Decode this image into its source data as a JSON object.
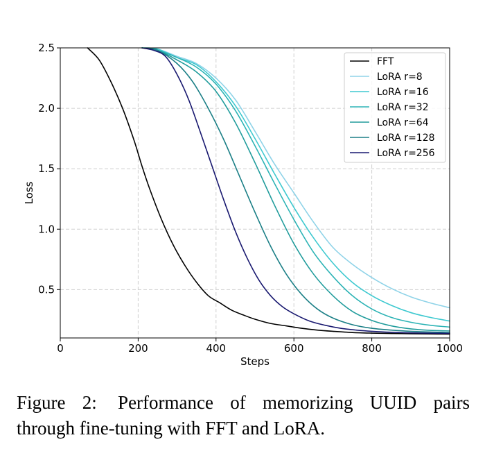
{
  "chart_data": {
    "type": "line",
    "xlabel": "Steps",
    "ylabel": "Loss",
    "xlim": [
      0,
      1000
    ],
    "ylim": [
      0.1,
      2.5
    ],
    "xticks": [
      0,
      200,
      400,
      600,
      800,
      1000
    ],
    "xtick_labels": [
      "0",
      "200",
      "400",
      "600",
      "800",
      "1000"
    ],
    "yticks": [
      0.5,
      1.0,
      1.5,
      2.0,
      2.5
    ],
    "ytick_labels": [
      "0.5",
      "1.0",
      "1.5",
      "2.0",
      "2.5"
    ],
    "grid": true,
    "legend_position": "top-right",
    "series": [
      {
        "name": "FFT",
        "color": "#000000",
        "x": [
          70,
          100,
          130,
          160,
          190,
          210,
          230,
          260,
          290,
          320,
          350,
          380,
          410,
          440,
          470,
          500,
          540,
          580,
          620,
          660,
          700,
          750,
          800,
          850,
          900,
          950,
          1000
        ],
        "y": [
          2.5,
          2.4,
          2.22,
          2.0,
          1.73,
          1.52,
          1.33,
          1.08,
          0.87,
          0.7,
          0.56,
          0.45,
          0.39,
          0.33,
          0.29,
          0.255,
          0.22,
          0.2,
          0.18,
          0.165,
          0.155,
          0.145,
          0.14,
          0.137,
          0.135,
          0.133,
          0.132
        ]
      },
      {
        "name": "LoRA r=8",
        "color": "#8fd3e8",
        "x": [
          210,
          250,
          300,
          350,
          400,
          450,
          500,
          550,
          600,
          650,
          700,
          750,
          800,
          850,
          900,
          950,
          1000
        ],
        "y": [
          2.5,
          2.49,
          2.43,
          2.37,
          2.25,
          2.07,
          1.81,
          1.54,
          1.3,
          1.06,
          0.85,
          0.71,
          0.6,
          0.51,
          0.44,
          0.39,
          0.35
        ]
      },
      {
        "name": "LoRA r=16",
        "color": "#3ec9d0",
        "x": [
          210,
          250,
          300,
          350,
          400,
          450,
          500,
          550,
          600,
          650,
          700,
          750,
          800,
          850,
          900,
          950,
          1000
        ],
        "y": [
          2.5,
          2.49,
          2.42,
          2.36,
          2.22,
          2.02,
          1.75,
          1.46,
          1.18,
          0.93,
          0.72,
          0.56,
          0.45,
          0.37,
          0.31,
          0.27,
          0.24
        ]
      },
      {
        "name": "LoRA r=32",
        "color": "#2cb3b5",
        "x": [
          210,
          250,
          300,
          350,
          400,
          450,
          500,
          550,
          600,
          650,
          700,
          750,
          800,
          850,
          900,
          950,
          1000
        ],
        "y": [
          2.5,
          2.48,
          2.42,
          2.34,
          2.2,
          1.98,
          1.69,
          1.38,
          1.08,
          0.81,
          0.61,
          0.45,
          0.34,
          0.27,
          0.23,
          0.205,
          0.19
        ]
      },
      {
        "name": "LoRA r=64",
        "color": "#219c9c",
        "x": [
          210,
          250,
          300,
          350,
          400,
          450,
          500,
          550,
          600,
          650,
          700,
          750,
          800,
          850,
          900,
          950,
          1000
        ],
        "y": [
          2.5,
          2.48,
          2.4,
          2.3,
          2.14,
          1.88,
          1.55,
          1.2,
          0.88,
          0.63,
          0.45,
          0.32,
          0.245,
          0.2,
          0.175,
          0.163,
          0.158
        ]
      },
      {
        "name": "LoRA r=128",
        "color": "#1b7f86",
        "x": [
          210,
          250,
          300,
          340,
          380,
          420,
          460,
          500,
          540,
          580,
          620,
          660,
          700,
          750,
          800,
          850,
          900,
          950,
          1000
        ],
        "y": [
          2.5,
          2.48,
          2.37,
          2.22,
          2.0,
          1.74,
          1.44,
          1.14,
          0.86,
          0.63,
          0.46,
          0.34,
          0.265,
          0.21,
          0.18,
          0.165,
          0.155,
          0.149,
          0.145
        ]
      },
      {
        "name": "LoRA r=256",
        "color": "#191970",
        "x": [
          210,
          240,
          270,
          300,
          330,
          360,
          390,
          420,
          450,
          480,
          510,
          540,
          570,
          600,
          640,
          680,
          720,
          760,
          800,
          850,
          900,
          950,
          1000
        ],
        "y": [
          2.5,
          2.48,
          2.43,
          2.28,
          2.07,
          1.8,
          1.52,
          1.24,
          0.98,
          0.76,
          0.58,
          0.45,
          0.36,
          0.3,
          0.24,
          0.205,
          0.18,
          0.165,
          0.155,
          0.147,
          0.142,
          0.14,
          0.138
        ]
      }
    ]
  },
  "caption": {
    "line1_parts": [
      "Figure 2:",
      "Performance",
      "of",
      "memorizing",
      "UUID",
      "pairs"
    ],
    "line2": "through fine-tuning with FFT and LoRA."
  }
}
